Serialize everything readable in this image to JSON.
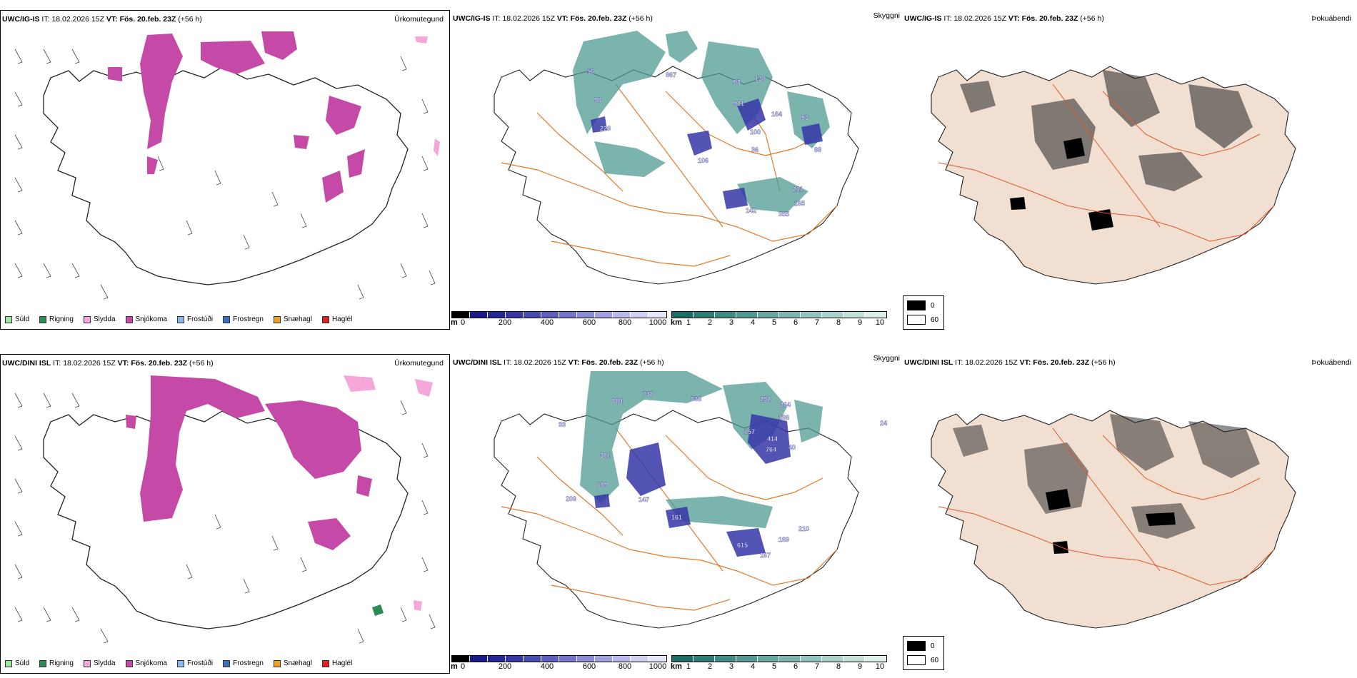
{
  "rows": [
    {
      "model": "UWC/IG-IS",
      "it_label": "IT:",
      "it_value": "18.02.2026 15Z",
      "vt_label": "VT:",
      "vt_value": "Fös. 20.feb. 23Z",
      "lead": "(+56 h)",
      "panel_titles": [
        "Úrkomutegund",
        "Skyggni",
        "Þokuábendi"
      ]
    },
    {
      "model": "UWC/DINI ISL",
      "it_label": "IT:",
      "it_value": "18.02.2026 15Z",
      "vt_label": "VT:",
      "vt_value": "Fös. 20.feb. 23Z",
      "lead": "(+56 h)",
      "panel_titles": [
        "Úrkomutegund",
        "Skyggni",
        "Þokuábendi"
      ]
    }
  ],
  "precip_legend": [
    {
      "label": "Súld",
      "color": "#9be89b"
    },
    {
      "label": "Rigning",
      "color": "#2e8b57"
    },
    {
      "label": "Slydda",
      "color": "#f4a7d8"
    },
    {
      "label": "Snjókoma",
      "color": "#c54aa8"
    },
    {
      "label": "Frostúði",
      "color": "#8ab8f0"
    },
    {
      "label": "Frostregn",
      "color": "#3a6fc4"
    },
    {
      "label": "Snæhagl",
      "color": "#f0a020"
    },
    {
      "label": "Haglél",
      "color": "#e02020"
    }
  ],
  "ceiling_bar": {
    "unit": "m",
    "ticks": [
      "0",
      "200",
      "400",
      "600",
      "800",
      "1000"
    ],
    "colors": [
      "#000000",
      "#1a1a8c",
      "#26269a",
      "#3636a8",
      "#4a4ab4",
      "#5e5ec0",
      "#7474cc",
      "#8a8ad6",
      "#a0a0e0",
      "#b8b8ea",
      "#d0d0f2",
      "#e6e6fa"
    ]
  },
  "visibility_bar": {
    "unit": "km",
    "ticks": [
      "1",
      "2",
      "3",
      "4",
      "5",
      "6",
      "7",
      "8",
      "9",
      "10"
    ],
    "colors": [
      "#1a6e66",
      "#2a7d75",
      "#3a8c84",
      "#4f9a92",
      "#64a8a0",
      "#7ab6ae",
      "#90c4bc",
      "#a8d2ca",
      "#c0e0d8",
      "#dcefe9"
    ]
  },
  "fog_legend": {
    "black_label": "0",
    "white_label": "60"
  },
  "top_visibility_labels": [
    "867",
    "98",
    "130",
    "921",
    "164",
    "93",
    "100",
    "36",
    "88",
    "211",
    "165",
    "355",
    "142",
    "106",
    "228",
    "56",
    "98"
  ],
  "bottom_visibility_labels": [
    "884",
    "738",
    "838",
    "292",
    "264",
    "186",
    "157",
    "414",
    "40",
    "764",
    "301",
    "609",
    "209",
    "147",
    "161",
    "615",
    "189",
    "210",
    "167",
    "24",
    "33"
  ]
}
